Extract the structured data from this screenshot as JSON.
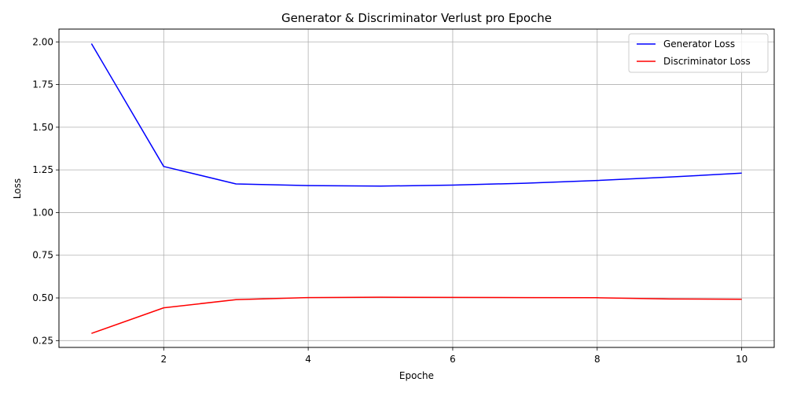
{
  "chart_data": {
    "type": "line",
    "title": "Generator & Discriminator Verlust pro Epoche",
    "xlabel": "Epoche",
    "ylabel": "Loss",
    "x": [
      1,
      2,
      3,
      4,
      5,
      6,
      7,
      8,
      9,
      10
    ],
    "xlim": [
      0.55,
      10.45
    ],
    "ylim": [
      0.21,
      2.075
    ],
    "xticks": [
      2,
      4,
      6,
      8,
      10
    ],
    "xtick_labels": [
      "2",
      "4",
      "6",
      "8",
      "10"
    ],
    "yticks": [
      0.25,
      0.5,
      0.75,
      1.0,
      1.25,
      1.5,
      1.75,
      2.0
    ],
    "ytick_labels": [
      "0.25",
      "0.50",
      "0.75",
      "1.00",
      "1.25",
      "1.50",
      "1.75",
      "2.00"
    ],
    "grid": true,
    "legend_position": "top-right",
    "series": [
      {
        "name": "Generator Loss",
        "color": "#0000ff",
        "values": [
          1.99,
          1.27,
          1.168,
          1.158,
          1.155,
          1.161,
          1.172,
          1.188,
          1.208,
          1.231
        ]
      },
      {
        "name": "Discriminator Loss",
        "color": "#ff0000",
        "values": [
          0.292,
          0.442,
          0.49,
          0.502,
          0.504,
          0.503,
          0.502,
          0.501,
          0.494,
          0.492
        ]
      }
    ]
  }
}
